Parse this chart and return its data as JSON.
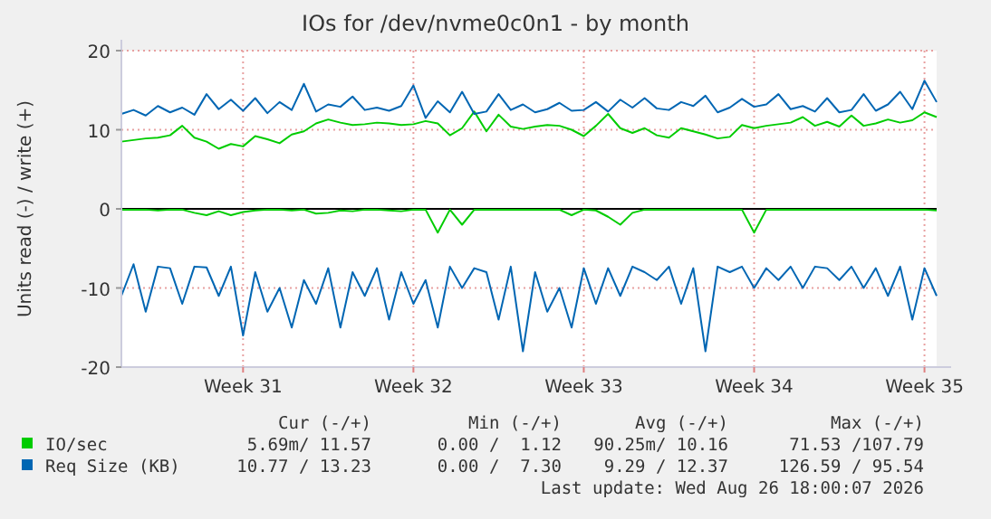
{
  "chart_data": {
    "type": "line",
    "title": "IOs for /dev/nvme0c0n1 - by month",
    "ylabel": "Units read (-) / write (+)",
    "categories": [
      null,
      null,
      null,
      null,
      null,
      null,
      null,
      null,
      null,
      null,
      "Week 31",
      null,
      null,
      null,
      null,
      null,
      null,
      null,
      null,
      null,
      null,
      null,
      null,
      null,
      "Week 32",
      null,
      null,
      null,
      null,
      null,
      null,
      null,
      null,
      null,
      null,
      null,
      null,
      null,
      "Week 33",
      null,
      null,
      null,
      null,
      null,
      null,
      null,
      null,
      null,
      null,
      null,
      null,
      null,
      "Week 34",
      null,
      null,
      null,
      null,
      null,
      null,
      null,
      null,
      null,
      null,
      null,
      null,
      null,
      "Week 35",
      null
    ],
    "series": [
      {
        "name": "IO/sec",
        "color": "#00cc00",
        "values": [
          8.5,
          8.7,
          8.9,
          9.0,
          9.3,
          10.5,
          9.0,
          8.5,
          7.6,
          8.2,
          7.9,
          9.2,
          8.8,
          8.3,
          9.4,
          9.8,
          10.8,
          11.3,
          10.9,
          10.6,
          10.7,
          10.9,
          10.8,
          10.6,
          10.7,
          11.1,
          10.8,
          9.3,
          10.2,
          12.3,
          9.8,
          11.9,
          10.4,
          10.1,
          10.4,
          10.6,
          10.5,
          10.0,
          9.2,
          10.5,
          12.0,
          10.2,
          9.6,
          10.2,
          9.3,
          9.0,
          10.2,
          9.8,
          9.4,
          8.9,
          9.1,
          10.6,
          10.2,
          10.5,
          10.7,
          10.9,
          11.6,
          10.5,
          11.0,
          10.4,
          11.8,
          10.5,
          10.8,
          11.3,
          10.9,
          11.2,
          12.2,
          11.6
        ]
      },
      {
        "color": "#00cc00",
        "values": [
          -0.1,
          -0.1,
          -0.1,
          -0.2,
          -0.1,
          -0.1,
          -0.5,
          -0.8,
          -0.3,
          -0.8,
          -0.4,
          -0.2,
          -0.1,
          -0.1,
          -0.2,
          -0.1,
          -0.6,
          -0.5,
          -0.2,
          -0.3,
          -0.1,
          -0.1,
          -0.2,
          -0.3,
          -0.1,
          -0.1,
          -3.0,
          -0.1,
          -2.0,
          -0.1,
          -0.1,
          -0.1,
          -0.1,
          -0.1,
          -0.1,
          -0.1,
          -0.1,
          -0.8,
          -0.1,
          -0.2,
          -1.0,
          -2.0,
          -0.5,
          -0.1,
          -0.1,
          -0.1,
          -0.1,
          -0.1,
          -0.1,
          -0.1,
          -0.1,
          -0.1,
          -3.0,
          -0.1,
          -0.1,
          -0.1,
          -0.1,
          -0.1,
          -0.1,
          -0.1,
          -0.1,
          -0.1,
          -0.1,
          -0.1,
          -0.1,
          -0.1,
          -0.1,
          -0.2
        ]
      },
      {
        "name": "Req Size (KB)",
        "color": "#0066b3",
        "values": [
          12.0,
          12.5,
          11.8,
          13.0,
          12.2,
          12.8,
          11.9,
          14.5,
          12.6,
          13.8,
          12.4,
          14.0,
          12.1,
          13.5,
          12.5,
          15.8,
          12.3,
          13.2,
          12.9,
          14.2,
          12.5,
          12.8,
          12.4,
          13.0,
          15.6,
          11.5,
          13.6,
          12.2,
          14.8,
          12.0,
          12.3,
          14.5,
          12.5,
          13.2,
          12.2,
          12.6,
          13.4,
          12.4,
          12.5,
          13.5,
          12.3,
          13.8,
          12.8,
          14.0,
          12.7,
          12.5,
          13.5,
          13.0,
          14.3,
          12.2,
          12.8,
          13.9,
          12.9,
          13.2,
          14.5,
          12.6,
          13.0,
          12.3,
          14.0,
          12.2,
          12.5,
          14.5,
          12.4,
          13.2,
          14.8,
          12.6,
          16.2,
          13.5
        ]
      },
      {
        "color": "#0066b3",
        "values": [
          -11,
          -7,
          -13,
          -7.3,
          -7.5,
          -12,
          -7.3,
          -7.4,
          -11,
          -7.3,
          -16,
          -8,
          -13,
          -10,
          -15,
          -9,
          -12,
          -7.5,
          -15,
          -8,
          -11,
          -7.5,
          -14,
          -8,
          -12,
          -9,
          -15,
          -7.3,
          -10,
          -7.5,
          -8,
          -14,
          -7.3,
          -18,
          -8,
          -13,
          -10,
          -15,
          -7.5,
          -12,
          -7.5,
          -11,
          -7.3,
          -8,
          -9,
          -7.3,
          -12,
          -7.5,
          -18,
          -7.3,
          -8,
          -7.3,
          -10,
          -7.5,
          -9,
          -7.3,
          -10,
          -7.3,
          -7.5,
          -9,
          -7.3,
          -10,
          -7.5,
          -11,
          -7.3,
          -14,
          -7.5,
          -11
        ]
      }
    ],
    "ylim": [
      -20,
      20
    ],
    "yticks": [
      -20,
      -10,
      0,
      10,
      20
    ],
    "grid": true,
    "legend": "bottom",
    "ref_lines": [
      {
        "axis": "y",
        "value": 0,
        "color": "#000000"
      }
    ],
    "annotations": [
      "Cur (-/+)",
      "Min (-/+)",
      "Avg (-/+)",
      "Max (-/+)",
      "5.69m/ 11.57",
      "0.00 /  1.12",
      "90.25m/ 10.16",
      "71.53 /107.79",
      "10.77 / 13.23",
      "0.00 /  7.30",
      "9.29 / 12.37",
      "126.59 / 95.54",
      "Last update: Wed Aug 26 18:00:07 2026"
    ]
  }
}
